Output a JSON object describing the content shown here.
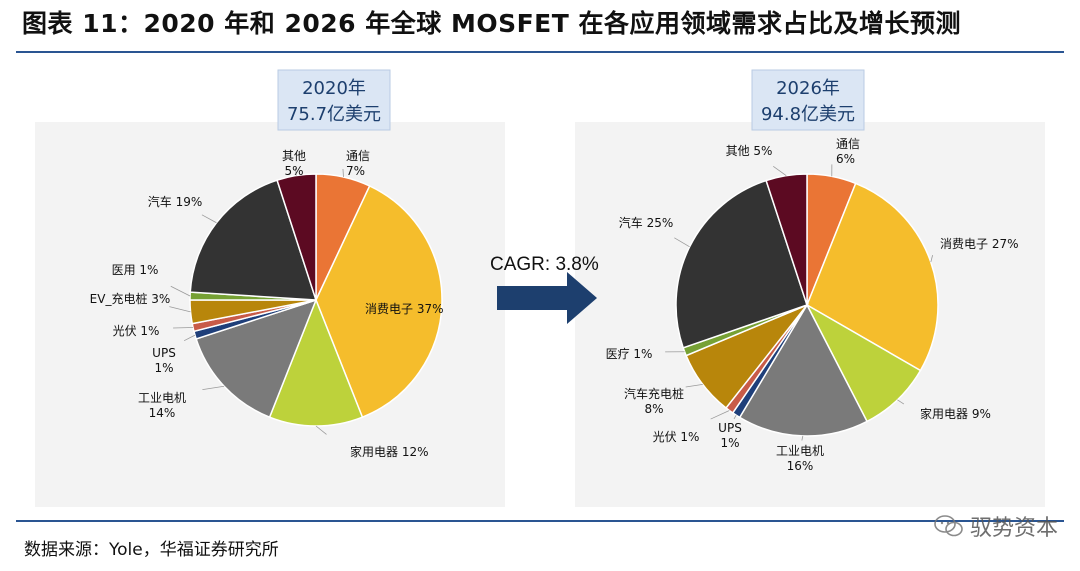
{
  "title": "图表 11：2020 年和 2026 年全球 MOSFET 在各应用领域需求占比及增长预测",
  "source": "数据来源：Yole，华福证券研究所",
  "watermark": "驭势资本",
  "arrow_label": "CAGR: 3.8%",
  "chart_data": [
    {
      "type": "pie",
      "year_label": "2020年",
      "total_label": "75.7亿美元",
      "slices": [
        {
          "name": "通信",
          "value": 7,
          "label": "通信\n7%",
          "color": "#ea7535"
        },
        {
          "name": "消费电子",
          "value": 37,
          "label": "消费电子 37%",
          "color": "#f5bd2c"
        },
        {
          "name": "家用电器",
          "value": 12,
          "label": "家用电器 12%",
          "color": "#bdd23b"
        },
        {
          "name": "工业电机",
          "value": 14,
          "label": "工业电机\n14%",
          "color": "#7a7a7a"
        },
        {
          "name": "UPS",
          "value": 1,
          "label": "UPS\n1%",
          "color": "#1f3f7a"
        },
        {
          "name": "光伏",
          "value": 1,
          "label": "光伏 1%",
          "color": "#c85b48"
        },
        {
          "name": "EV_充电桩",
          "value": 3,
          "label": "EV_充电桩 3%",
          "color": "#b8860b"
        },
        {
          "name": "医用",
          "value": 1,
          "label": "医用 1%",
          "color": "#76a134"
        },
        {
          "name": "汽车",
          "value": 19,
          "label": "汽车 19%",
          "color": "#333333"
        },
        {
          "name": "其他",
          "value": 5,
          "label": "其他\n5%",
          "color": "#5c0a22"
        }
      ]
    },
    {
      "type": "pie",
      "year_label": "2026年",
      "total_label": "94.8亿美元",
      "slices": [
        {
          "name": "通信",
          "value": 6,
          "label": "通信\n6%",
          "color": "#ea7535"
        },
        {
          "name": "消费电子",
          "value": 27,
          "label": "消费电子 27%",
          "color": "#f5bd2c"
        },
        {
          "name": "家用电器",
          "value": 9,
          "label": "家用电器 9%",
          "color": "#bdd23b"
        },
        {
          "name": "工业电机",
          "value": 16,
          "label": "工业电机\n16%",
          "color": "#7a7a7a"
        },
        {
          "name": "UPS",
          "value": 1,
          "label": "UPS\n1%",
          "color": "#1f3f7a"
        },
        {
          "name": "光伏",
          "value": 1,
          "label": "光伏 1%",
          "color": "#c85b48"
        },
        {
          "name": "汽车充电桩",
          "value": 8,
          "label": "汽车充电桩\n8%",
          "color": "#b8860b"
        },
        {
          "name": "医疗",
          "value": 1,
          "label": "医疗 1%",
          "color": "#76a134"
        },
        {
          "name": "汽车",
          "value": 25,
          "label": "汽车 25%",
          "color": "#333333"
        },
        {
          "name": "其他",
          "value": 5,
          "label": "其他 5%",
          "color": "#5c0a22"
        }
      ]
    }
  ]
}
